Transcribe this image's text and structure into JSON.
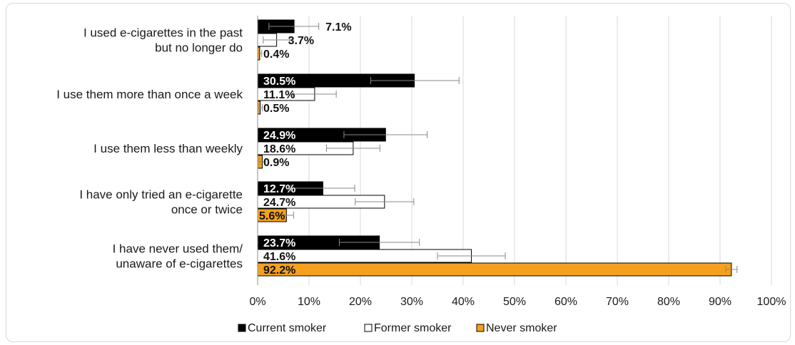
{
  "chart_data": {
    "type": "bar",
    "orientation": "horizontal",
    "categories": [
      [
        "I used e-cigarettes in the past",
        "but no longer do"
      ],
      [
        "I use them more than once a week"
      ],
      [
        "I use them less than weekly"
      ],
      [
        "I have only tried an e-cigarette",
        "once or twice"
      ],
      [
        "I have never used them/",
        "unaware of e-cigarettes"
      ]
    ],
    "series": [
      {
        "name": "Current smoker",
        "color": "#000000",
        "values": [
          7.1,
          30.5,
          24.9,
          12.7,
          23.7
        ],
        "labels": [
          "7.1%",
          "30.5%",
          "24.9%",
          "12.7%",
          "23.7%"
        ],
        "error_low": [
          2.2,
          22.0,
          16.8,
          6.5,
          15.9
        ],
        "error_high": [
          11.9,
          39.2,
          33.0,
          18.9,
          31.5
        ]
      },
      {
        "name": "Former smoker",
        "color": "#ffffff",
        "values": [
          3.7,
          11.1,
          18.6,
          24.7,
          41.6
        ],
        "labels": [
          "3.7%",
          "11.1%",
          "18.6%",
          "24.7%",
          "41.6%"
        ],
        "error_low": [
          1.1,
          6.9,
          13.4,
          19.0,
          35.0
        ],
        "error_high": [
          6.2,
          15.3,
          23.8,
          30.4,
          48.2
        ]
      },
      {
        "name": "Never smoker",
        "color": "#f5a11e",
        "values": [
          0.4,
          0.5,
          0.9,
          5.6,
          92.2
        ],
        "labels": [
          "0.4%",
          "0.5%",
          "0.9%",
          "5.6%",
          "92.2%"
        ],
        "error_low": [
          0.0,
          0.1,
          0.3,
          4.2,
          91.1
        ],
        "error_high": [
          0.8,
          0.9,
          1.5,
          7.0,
          93.3
        ]
      }
    ],
    "xticks": [
      "0%",
      "10%",
      "20%",
      "30%",
      "40%",
      "50%",
      "60%",
      "70%",
      "80%",
      "90%",
      "100%"
    ],
    "xlim": [
      0,
      100
    ],
    "grid": true,
    "legend_position": "bottom"
  }
}
